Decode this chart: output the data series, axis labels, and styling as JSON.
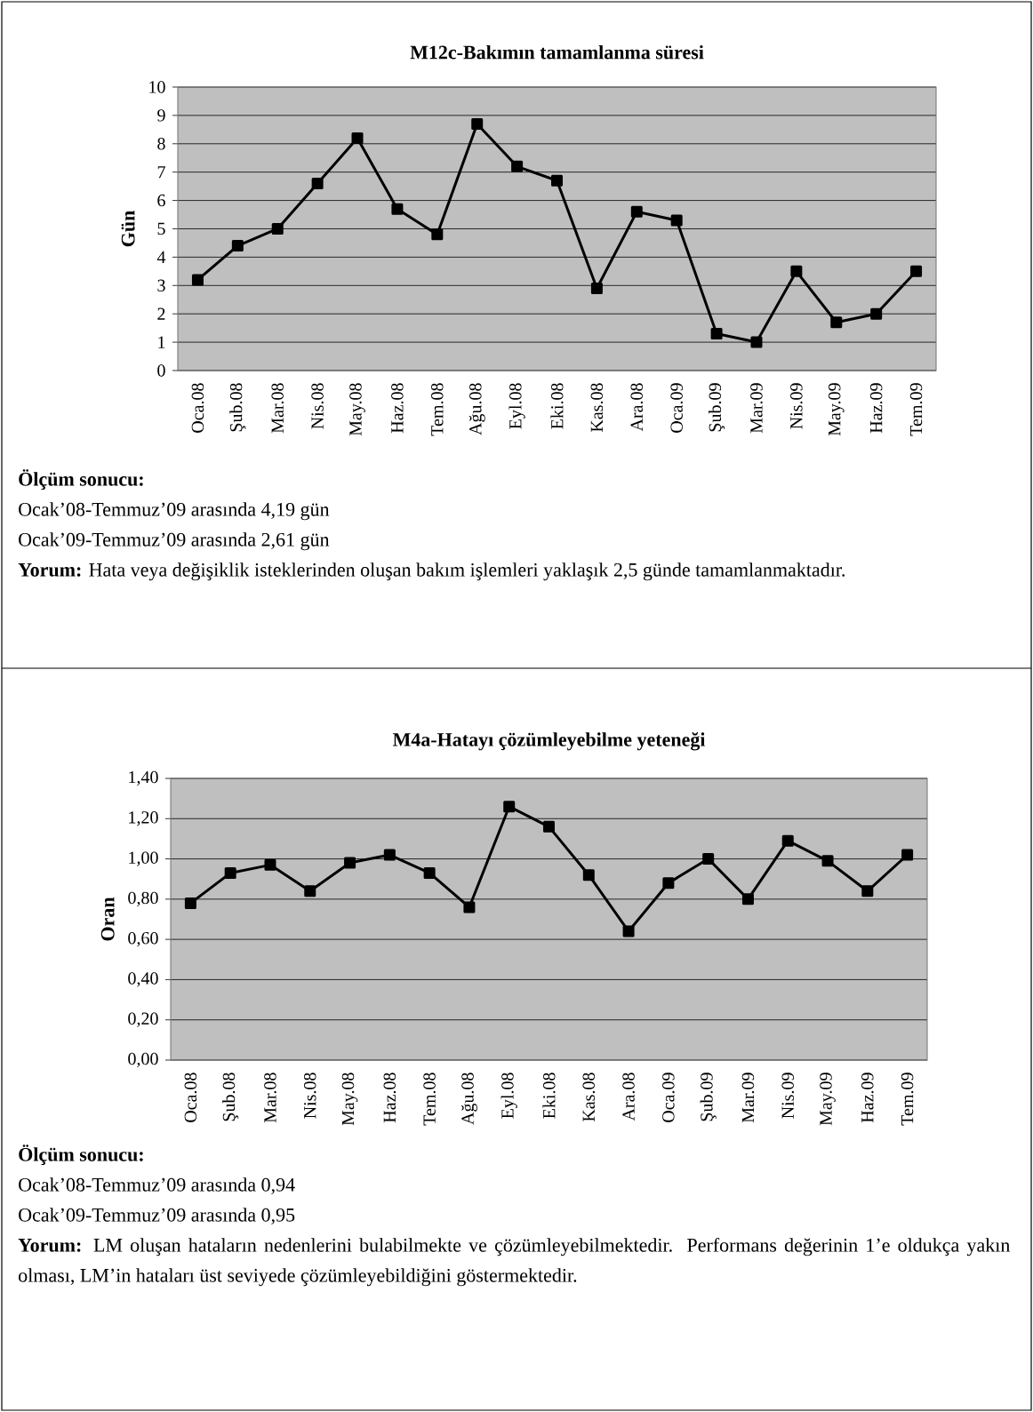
{
  "chart_data": [
    {
      "type": "line",
      "title": "M12c-Bakımın tamamlanma süresi",
      "ylabel": "Gün",
      "categories": [
        "Oca.08",
        "Şub.08",
        "Mar.08",
        "Nis.08",
        "May.08",
        "Haz.08",
        "Tem.08",
        "Ağu.08",
        "Eyl.08",
        "Eki.08",
        "Kas.08",
        "Ara.08",
        "Oca.09",
        "Şub.09",
        "Mar.09",
        "Nis.09",
        "May.09",
        "Haz.09",
        "Tem.09"
      ],
      "values": [
        3.2,
        4.4,
        5.0,
        6.6,
        8.2,
        5.7,
        4.8,
        8.7,
        7.2,
        6.7,
        2.9,
        5.6,
        5.3,
        1.3,
        1.0,
        3.5,
        1.7,
        2.0,
        3.5
      ],
      "color": "#000000",
      "marker": "square",
      "grid": "y",
      "ylim": [
        0,
        10
      ],
      "yticks": [
        0,
        1,
        2,
        3,
        4,
        5,
        6,
        7,
        8,
        9,
        10
      ],
      "annotations": [
        "Ölçüm sonucu:",
        "Ocak’08-Temmuz’09 arasında 4,19 gün",
        "Ocak’09-Temmuz’09 arasında 2,61 gün",
        "**Yorum:** Hata veya değişiklik isteklerinden oluşan bakım işlemleri yaklaşık 2,5 günde tamamlanmaktadır."
      ]
    },
    {
      "type": "line",
      "title": "M4a-Hatayı çözümleyebilme yeteneği",
      "ylabel": "Oran",
      "categories": [
        "Oca.08",
        "Şub.08",
        "Mar.08",
        "Nis.08",
        "May.08",
        "Haz.08",
        "Tem.08",
        "Ağu.08",
        "Eyl.08",
        "Eki.08",
        "Kas.08",
        "Ara.08",
        "Oca.09",
        "Şub.09",
        "Mar.09",
        "Nis.09",
        "May.09",
        "Haz.09",
        "Tem.09"
      ],
      "values": [
        0.78,
        0.93,
        0.97,
        0.84,
        0.98,
        1.02,
        0.93,
        0.76,
        1.26,
        1.16,
        0.92,
        0.64,
        0.88,
        1.0,
        0.8,
        1.09,
        0.99,
        0.84,
        1.02
      ],
      "color": "#000000",
      "marker": "square",
      "grid": "y",
      "ylim": [
        0,
        1.4
      ],
      "yticks": [
        {
          "value": 0,
          "label": "0,00"
        },
        {
          "value": 0.2,
          "label": "0,20"
        },
        {
          "value": 0.4,
          "label": "0,40"
        },
        {
          "value": 0.6,
          "label": "0,60"
        },
        {
          "value": 0.8,
          "label": "0,80"
        },
        {
          "value": 1.0,
          "label": "1,00"
        },
        {
          "value": 1.2,
          "label": "1,20"
        },
        {
          "value": 1.4,
          "label": "1,40"
        }
      ],
      "annotations": [
        "Ölçüm sonucu:",
        "Ocak’08-Temmuz’09 arasında 0,94",
        "Ocak’09-Temmuz’09 arasında 0,95",
        "**Yorum:** LM oluşan hataların nedenlerini bulabilmekte ve çözümleyebilmektedir. Performans değerinin 1’e oldukça yakın olması, LM’in hataları üst seviyede çözümleyebildiğini göstermektedir."
      ]
    }
  ]
}
